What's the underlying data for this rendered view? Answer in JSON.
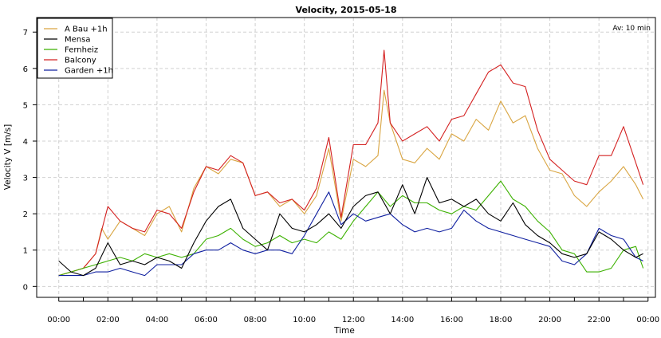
{
  "chart_data": {
    "type": "line",
    "title": "Velocity, 2015-05-18",
    "xlabel": "Time",
    "ylabel": "Velocity V [m/s]",
    "annotation": "Av: 10 min",
    "x_ticks": [
      "00:00",
      "02:00",
      "04:00",
      "06:00",
      "08:00",
      "10:00",
      "12:00",
      "14:00",
      "16:00",
      "18:00",
      "20:00",
      "22:00",
      "00:00"
    ],
    "xlim_hours": [
      -0.9,
      24.3
    ],
    "ylim": [
      -0.3,
      7.4
    ],
    "y_ticks": [
      0,
      1,
      2,
      3,
      4,
      5,
      6,
      7
    ],
    "grid": true,
    "legend_position": "top-left",
    "series": [
      {
        "name": "A Bau +1h",
        "color": "#d9a541",
        "x": [
          0,
          0.5,
          1,
          1.5,
          1.75,
          2,
          2.5,
          3,
          3.5,
          4,
          4.5,
          5,
          5.5,
          6,
          6.5,
          7,
          7.5,
          8,
          8.5,
          9,
          9.5,
          10,
          10.5,
          11,
          11.5,
          12,
          12.5,
          13,
          13.25,
          13.5,
          14,
          14.5,
          15,
          15.5,
          16,
          16.5,
          17,
          17.5,
          18,
          18.5,
          19,
          19.5,
          20,
          20.5,
          21,
          21.5,
          22,
          22.5,
          23,
          23.5,
          23.8
        ],
        "y": [
          0.3,
          0.4,
          0.5,
          0.9,
          1.6,
          1.3,
          1.8,
          1.6,
          1.4,
          2.0,
          2.2,
          1.5,
          2.7,
          3.3,
          3.1,
          3.5,
          3.4,
          2.5,
          2.6,
          2.2,
          2.4,
          2.0,
          2.5,
          3.8,
          1.8,
          3.5,
          3.3,
          3.6,
          5.4,
          4.5,
          3.5,
          3.4,
          3.8,
          3.5,
          4.2,
          4.0,
          4.6,
          4.3,
          5.1,
          4.5,
          4.7,
          3.8,
          3.2,
          3.1,
          2.5,
          2.2,
          2.6,
          2.9,
          3.3,
          2.8,
          2.4
        ]
      },
      {
        "name": "Mensa",
        "color": "#000000",
        "x": [
          0,
          0.5,
          1,
          1.5,
          2,
          2.5,
          3,
          3.5,
          4,
          4.5,
          5,
          5.5,
          6,
          6.5,
          7,
          7.5,
          8,
          8.5,
          9,
          9.5,
          10,
          10.5,
          11,
          11.5,
          12,
          12.5,
          13,
          13.5,
          14,
          14.5,
          15,
          15.5,
          16,
          16.5,
          17,
          17.5,
          18,
          18.5,
          19,
          19.5,
          20,
          20.5,
          21,
          21.5,
          22,
          22.5,
          23,
          23.5,
          23.8
        ],
        "y": [
          0.7,
          0.4,
          0.3,
          0.5,
          1.2,
          0.6,
          0.7,
          0.6,
          0.8,
          0.7,
          0.5,
          1.2,
          1.8,
          2.2,
          2.4,
          1.6,
          1.3,
          1.0,
          2.0,
          1.6,
          1.5,
          1.7,
          2.0,
          1.6,
          2.2,
          2.5,
          2.6,
          2.0,
          2.8,
          2.0,
          3.0,
          2.3,
          2.4,
          2.2,
          2.4,
          2.0,
          1.8,
          2.3,
          1.7,
          1.4,
          1.2,
          0.9,
          0.8,
          0.9,
          1.5,
          1.3,
          1.0,
          0.8,
          0.9
        ]
      },
      {
        "name": "Fernheiz",
        "color": "#3cb100",
        "x": [
          0,
          0.5,
          1,
          1.5,
          2,
          2.5,
          3,
          3.5,
          4,
          4.5,
          5,
          5.5,
          6,
          6.5,
          7,
          7.5,
          8,
          8.5,
          9,
          9.5,
          10,
          10.5,
          11,
          11.5,
          12,
          12.5,
          13,
          13.5,
          14,
          14.5,
          15,
          15.5,
          16,
          16.5,
          17,
          17.5,
          18,
          18.5,
          19,
          19.5,
          20,
          20.5,
          21,
          21.5,
          22,
          22.5,
          23,
          23.5,
          23.8
        ],
        "y": [
          0.3,
          0.4,
          0.5,
          0.6,
          0.7,
          0.8,
          0.7,
          0.9,
          0.8,
          0.9,
          0.8,
          0.9,
          1.3,
          1.4,
          1.6,
          1.3,
          1.1,
          1.2,
          1.4,
          1.2,
          1.3,
          1.2,
          1.5,
          1.3,
          1.8,
          2.2,
          2.6,
          2.2,
          2.5,
          2.3,
          2.3,
          2.1,
          2.0,
          2.2,
          2.1,
          2.5,
          2.9,
          2.4,
          2.2,
          1.8,
          1.5,
          1.0,
          0.9,
          0.4,
          0.4,
          0.5,
          1.0,
          1.1,
          0.5
        ]
      },
      {
        "name": "Balcony",
        "color": "#d42020",
        "x": [
          0,
          0.5,
          1,
          1.5,
          2,
          2.5,
          3,
          3.5,
          4,
          4.5,
          5,
          5.5,
          6,
          6.5,
          7,
          7.5,
          8,
          8.5,
          9,
          9.5,
          10,
          10.5,
          11,
          11.5,
          12,
          12.5,
          13,
          13.25,
          13.5,
          14,
          14.5,
          15,
          15.5,
          16,
          16.5,
          17,
          17.5,
          18,
          18.5,
          19,
          19.5,
          20,
          20.5,
          21,
          21.5,
          22,
          22.5,
          23,
          23.5,
          23.8
        ],
        "y": [
          0.3,
          0.4,
          0.5,
          0.9,
          2.2,
          1.8,
          1.6,
          1.5,
          2.1,
          2.0,
          1.6,
          2.6,
          3.3,
          3.2,
          3.6,
          3.4,
          2.5,
          2.6,
          2.3,
          2.4,
          2.1,
          2.7,
          4.1,
          1.9,
          3.9,
          3.9,
          4.5,
          6.5,
          4.5,
          4.0,
          4.2,
          4.4,
          4.0,
          4.6,
          4.7,
          5.3,
          5.9,
          6.1,
          5.6,
          5.5,
          4.3,
          3.5,
          3.2,
          2.9,
          2.8,
          3.6,
          3.6,
          4.4,
          3.4,
          2.8
        ]
      },
      {
        "name": "Garden +1h",
        "color": "#1020a0",
        "x": [
          0,
          0.5,
          1,
          1.5,
          2,
          2.5,
          3,
          3.5,
          4,
          4.5,
          5,
          5.5,
          6,
          6.5,
          7,
          7.5,
          8,
          8.5,
          9,
          9.5,
          10,
          10.5,
          11,
          11.5,
          12,
          12.5,
          13,
          13.5,
          14,
          14.5,
          15,
          15.5,
          16,
          16.5,
          17,
          17.5,
          18,
          18.5,
          19,
          19.5,
          20,
          20.5,
          21,
          21.5,
          22,
          22.5,
          23,
          23.5,
          23.8
        ],
        "y": [
          0.3,
          0.3,
          0.3,
          0.4,
          0.4,
          0.5,
          0.4,
          0.3,
          0.6,
          0.6,
          0.6,
          0.9,
          1.0,
          1.0,
          1.2,
          1.0,
          0.9,
          1.0,
          1.0,
          0.9,
          1.4,
          2.0,
          2.6,
          1.7,
          2.0,
          1.8,
          1.9,
          2.0,
          1.7,
          1.5,
          1.6,
          1.5,
          1.6,
          2.1,
          1.8,
          1.6,
          1.5,
          1.4,
          1.3,
          1.2,
          1.1,
          0.7,
          0.6,
          0.9,
          1.6,
          1.4,
          1.3,
          0.8,
          0.7
        ]
      }
    ]
  }
}
